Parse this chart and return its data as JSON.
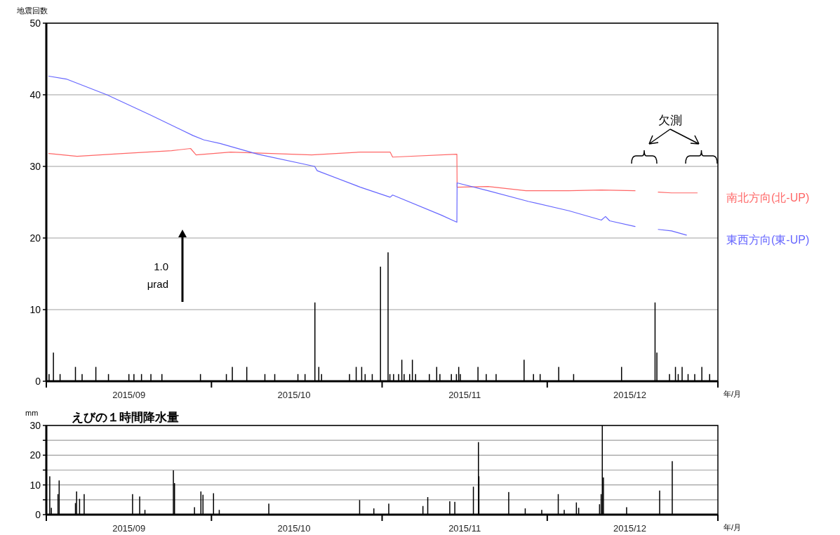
{
  "chart_data": [
    {
      "type": "bar",
      "xlabel": "年/月",
      "ylabel": "地震回数",
      "xlim": [
        "2015-09-01",
        "2016-01-01"
      ],
      "ylim": [
        0,
        50
      ],
      "yticks": [
        0,
        10,
        20,
        30,
        40,
        50
      ],
      "xticks": [
        {
          "value": "2015-09-01",
          "label": null
        },
        {
          "value": "2015-09-16",
          "label": "2015/09"
        },
        {
          "value": "2015-10-01",
          "label": null
        },
        {
          "value": "2015-10-16",
          "label": "2015/10"
        },
        {
          "value": "2015-11-01",
          "label": null
        },
        {
          "value": "2015-11-16",
          "label": "2015/11"
        },
        {
          "value": "2015-12-01",
          "label": null
        },
        {
          "value": "2015-12-16",
          "label": "2015/12"
        },
        {
          "value": "2016-01-01",
          "label": null
        }
      ],
      "grid": "y",
      "legend": "right",
      "annotations": [
        "欠測",
        "1.0",
        "μrad"
      ],
      "series": [
        {
          "color": "#000000",
          "x": [
            "2015-09-01T12:00",
            "2015-09-02T07:00",
            "2015-09-03T12:00",
            "2015-09-06T07:00",
            "2015-09-07T12:00",
            "2015-09-10T00:00",
            "2015-09-12T07:00",
            "2015-09-16T00:00",
            "2015-09-16T22:00",
            "2015-09-18T07:00",
            "2015-09-20T00:00",
            "2015-09-22T00:00",
            "2015-09-29T00:00",
            "2015-10-03T17:00",
            "2015-10-04T19:00",
            "2015-10-07T10:00",
            "2015-10-10T17:00",
            "2015-10-12T12:00",
            "2015-10-16T17:00",
            "2015-10-18T00:00",
            "2015-10-19T19:00",
            "2015-10-20T12:00",
            "2015-10-21T00:00",
            "2015-10-26T02:00",
            "2015-10-27T07:00",
            "2015-10-28T07:00",
            "2015-10-28T22:00",
            "2015-10-30T05:00",
            "2015-10-31T17:00",
            "2015-11-02T02:00",
            "2015-11-02T10:00",
            "2015-11-03T02:00",
            "2015-11-04T00:00",
            "2015-11-04T14:00",
            "2015-11-05T00:00",
            "2015-11-06T00:00",
            "2015-11-06T12:00",
            "2015-11-07T02:00",
            "2015-11-09T14:00",
            "2015-11-10T22:00",
            "2015-11-11T12:00",
            "2015-11-13T14:00",
            "2015-11-14T12:00",
            "2015-11-14T22:00",
            "2015-11-15T05:00",
            "2015-11-18T10:00",
            "2015-11-19T22:00",
            "2015-11-21T17:00",
            "2015-11-26T19:00",
            "2015-11-28T12:00",
            "2015-11-29T17:00",
            "2015-12-03T02:00",
            "2015-12-05T19:00",
            "2015-12-14T12:00",
            "2015-12-20T14:00",
            "2015-12-20T22:00",
            "2015-12-23T05:00",
            "2015-12-24T07:00",
            "2015-12-24T19:00",
            "2015-12-25T12:00",
            "2015-12-26T14:00",
            "2015-12-27T19:00",
            "2015-12-29T02:00",
            "2015-12-30T12:00"
          ],
          "values": [
            1,
            4,
            1,
            2,
            1,
            2,
            1,
            1,
            1,
            1,
            1,
            1,
            1,
            1,
            2,
            2,
            1,
            1,
            1,
            1,
            11,
            2,
            1,
            1,
            2,
            2,
            1,
            1,
            16,
            18,
            1,
            1,
            1,
            3,
            1,
            1,
            3,
            1,
            1,
            2,
            1,
            1,
            1,
            2,
            1,
            2,
            1,
            1,
            3,
            1,
            1,
            2,
            1,
            2,
            11,
            4,
            1,
            2,
            1,
            2,
            1,
            1,
            2,
            1
          ]
        },
        {
          "type": "line",
          "color": "#ff6666",
          "x": [
            "2015-09-01T11:00",
            "2015-09-06T14:00",
            "2015-09-14T22:00",
            "2015-09-23T18:00",
            "2015-09-27T05:00",
            "2015-09-28T05:00",
            "2015-10-04T12:00",
            "2015-10-19T05:00",
            "2015-10-28T01:00",
            "2015-11-02T11:00",
            "2015-11-02T22:00",
            "2015-11-14T14:00",
            "2015-11-14T15:00",
            "2015-11-20T06:00",
            "2015-11-27T03:00",
            "2015-12-04T23:00",
            "2015-12-10T20:00",
            "2015-12-16T23:00"
          ],
          "values": [
            31.8,
            31.4,
            31.8,
            32.2,
            32.5,
            31.6,
            32.0,
            31.6,
            32.0,
            32.0,
            31.3,
            31.7,
            27.1,
            27.2,
            26.6,
            26.6,
            26.7,
            26.6
          ]
        },
        {
          "type": "line",
          "name": "南北方向(北-UP)",
          "color": "#ff6666",
          "x": [
            "2015-12-21T04:00",
            "2015-12-23T14:00",
            "2015-12-27T00:00",
            "2015-12-28T06:00"
          ],
          "values": [
            26.4,
            26.3,
            26.3,
            26.3
          ]
        },
        {
          "type": "line",
          "color": "#6666ff",
          "x": [
            "2015-09-01T11:00",
            "2015-09-04T15:00",
            "2015-09-12T00:00",
            "2015-09-19T20:00",
            "2015-09-27T16:00",
            "2015-09-29T15:00",
            "2015-10-02T14:00",
            "2015-10-09T10:00",
            "2015-10-19T18:00",
            "2015-10-20T05:00",
            "2015-10-28T01:00",
            "2015-11-02T11:00",
            "2015-11-02T22:00",
            "2015-11-11T18:00",
            "2015-11-14T14:00",
            "2015-11-14T15:00",
            "2015-11-20T06:00",
            "2015-11-27T15:00",
            "2015-12-04T23:00",
            "2015-12-10T20:00",
            "2015-12-11T14:00",
            "2015-12-12T08:00",
            "2015-12-16T23:00"
          ],
          "values": [
            42.6,
            42.2,
            40.0,
            37.2,
            34.3,
            33.7,
            33.2,
            31.7,
            30.0,
            29.4,
            27.1,
            25.7,
            26.0,
            23.2,
            22.2,
            27.7,
            26.6,
            25.1,
            23.8,
            22.5,
            23.0,
            22.4,
            21.6
          ]
        },
        {
          "type": "line",
          "name": "東西方向(東-UP)",
          "color": "#6666ff",
          "x": [
            "2015-12-21T04:00",
            "2015-12-23T14:00",
            "2015-12-26T07:00"
          ],
          "values": [
            21.2,
            21.0,
            20.4
          ]
        }
      ]
    },
    {
      "type": "bar",
      "title": "えびの１時間降水量",
      "xlabel": "年/月",
      "ylabel": "mm",
      "xlim": [
        "2015-09-01",
        "2016-01-01"
      ],
      "ylim": [
        0,
        30
      ],
      "yticks": [
        0,
        {
          "value": 5,
          "label": null
        },
        10,
        {
          "value": 15,
          "label": null
        },
        20,
        {
          "value": 25,
          "label": null
        },
        30
      ],
      "xticks": [
        {
          "value": "2015-09-01",
          "label": null
        },
        {
          "value": "2015-09-16",
          "label": "2015/09"
        },
        {
          "value": "2015-10-01",
          "label": null
        },
        {
          "value": "2015-10-16",
          "label": "2015/10"
        },
        {
          "value": "2015-11-01",
          "label": null
        },
        {
          "value": "2015-11-16",
          "label": "2015/11"
        },
        {
          "value": "2015-12-01",
          "label": null
        },
        {
          "value": "2015-12-16",
          "label": "2015/12"
        },
        {
          "value": "2016-01-01",
          "label": null
        }
      ],
      "grid": "y",
      "series": [
        {
          "color": "#000000",
          "x": [
            "2015-09-01T15:00",
            "2015-09-01T22:00",
            "2015-09-03T03:00",
            "2015-09-03T08:00",
            "2015-09-06T07:00",
            "2015-09-06T12:00",
            "2015-09-07T01:00",
            "2015-09-07T21:00",
            "2015-09-16T16:00",
            "2015-09-17T23:00",
            "2015-09-18T22:00",
            "2015-09-24T02:00",
            "2015-09-24T07:00",
            "2015-09-27T22:00",
            "2015-09-29T02:00",
            "2015-09-29T11:00",
            "2015-10-01T09:00",
            "2015-10-02T10:00",
            "2015-10-11T10:00",
            "2015-10-27T22:00",
            "2015-10-30T12:00",
            "2015-11-02T05:00",
            "2015-11-08T10:00",
            "2015-11-09T07:00",
            "2015-11-13T07:00",
            "2015-11-14T05:00",
            "2015-11-17T14:00",
            "2015-11-18T12:00",
            "2015-11-18T14:00",
            "2015-11-24T00:00",
            "2015-11-27T00:00",
            "2015-11-30T00:00",
            "2015-12-03T00:00",
            "2015-12-04T02:00",
            "2015-12-06T07:00",
            "2015-12-06T17:00",
            "2015-12-10T12:00",
            "2015-12-10T19:00",
            "2015-12-11T00:00",
            "2015-12-11T05:00",
            "2015-12-15T10:00",
            "2015-12-21T10:00",
            "2015-12-23T17:00"
          ],
          "values": [
            12.9,
            2.3,
            6.9,
            11.5,
            3.9,
            7.8,
            5.3,
            6.9,
            6.9,
            6.1,
            1.6,
            14.9,
            10.6,
            2.5,
            7.8,
            6.7,
            7.2,
            1.6,
            3.7,
            4.9,
            2.1,
            3.7,
            2.9,
            5.9,
            4.5,
            4.3,
            9.4,
            24.4,
            12.9,
            7.6,
            2.1,
            1.6,
            6.9,
            1.6,
            4.1,
            2.3,
            3.5,
            6.9,
            30,
            12.5,
            2.5,
            8.1,
            18.0
          ]
        }
      ]
    }
  ]
}
